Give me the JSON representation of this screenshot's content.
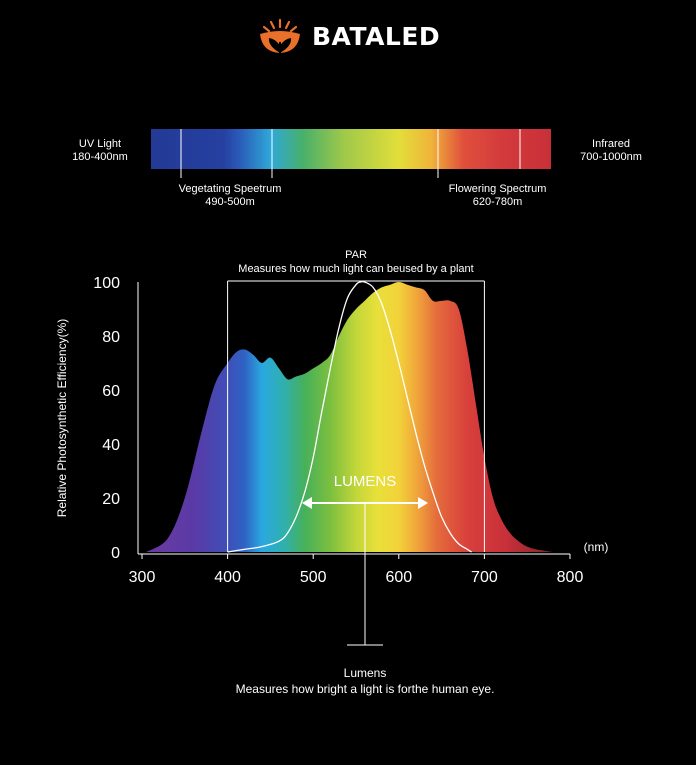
{
  "brand": {
    "name": "BATALED",
    "logo_icon": "sun-leaf-icon",
    "logo_color": "#e8702a"
  },
  "spectrum_bar": {
    "left_label_1": "UV Light",
    "left_label_2": "180-400nm",
    "right_label_1": "Infrared",
    "right_label_2": "700-1000nm",
    "veg_label_1": "Vegetating Speetrum",
    "veg_label_2": "490-500m",
    "flower_label_1": "Flowering Spectrum",
    "flower_label_2": "620-780m"
  },
  "par": {
    "title": "PAR",
    "subtitle": "Measures how much light can beused by a plant",
    "range": [
      400,
      700
    ]
  },
  "lumens": {
    "center_label": "LUMENS",
    "bottom_title": "Lumens",
    "bottom_desc": "Measures how bright a light is forthe human eye."
  },
  "chart_data": {
    "type": "area",
    "title": "",
    "xlabel": "",
    "x_unit_label": "(nm)",
    "ylabel": "Relative Photosynthetic Efficiency(%)",
    "xlim": [
      300,
      800
    ],
    "ylim": [
      0,
      100
    ],
    "x_ticks": [
      "300",
      "400",
      "500",
      "600",
      "700",
      "800"
    ],
    "y_ticks": [
      "0",
      "20",
      "40",
      "60",
      "80",
      "100"
    ],
    "series": [
      {
        "style": "filled-spectrum",
        "x": [
          305,
          330,
          350,
          370,
          385,
          400,
          410,
          420,
          430,
          440,
          450,
          460,
          470,
          480,
          490,
          500,
          510,
          520,
          530,
          540,
          550,
          560,
          570,
          580,
          590,
          600,
          610,
          620,
          630,
          640,
          650,
          660,
          670,
          680,
          690,
          700,
          710,
          720,
          730,
          740,
          750,
          760,
          770,
          780
        ],
        "y": [
          0,
          5,
          20,
          45,
          62,
          70,
          74,
          75,
          73,
          70,
          72,
          68,
          64,
          65,
          66,
          68,
          70,
          73,
          80,
          86,
          90,
          93,
          96,
          98,
          99,
          100,
          99,
          98,
          97,
          93,
          93,
          93,
          90,
          75,
          55,
          35,
          20,
          12,
          7,
          4,
          2,
          1,
          0.5,
          0
        ]
      },
      {
        "style": "white-line",
        "x": [
          400,
          420,
          440,
          460,
          470,
          480,
          490,
          500,
          510,
          520,
          530,
          540,
          550,
          555,
          560,
          570,
          580,
          590,
          600,
          610,
          620,
          630,
          640,
          650,
          660,
          670,
          680,
          685
        ],
        "y": [
          0,
          1,
          2,
          4,
          7,
          13,
          22,
          35,
          52,
          68,
          83,
          94,
          99,
          100,
          100,
          98,
          92,
          82,
          70,
          57,
          44,
          32,
          22,
          13,
          7,
          3,
          1,
          0
        ]
      }
    ],
    "grid": false,
    "legend": "none"
  }
}
